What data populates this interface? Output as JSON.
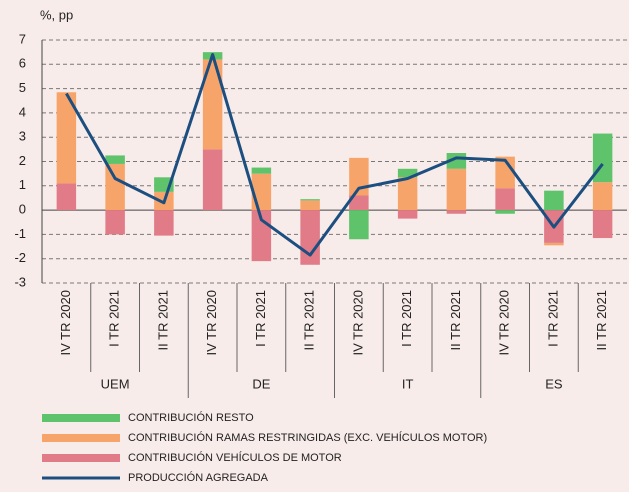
{
  "chart_data": {
    "type": "bar",
    "stacked": true,
    "y_label": "%, pp",
    "categories": [
      "IV TR 2020",
      "I TR 2021",
      "II TR 2021",
      "IV TR 2020",
      "I TR 2021",
      "II TR 2021",
      "IV TR 2020",
      "I TR 2021",
      "II TR 2021",
      "IV TR 2020",
      "I TR 2021",
      "II TR 2021"
    ],
    "groups": [
      "UEM",
      "DE",
      "IT",
      "ES"
    ],
    "series": [
      {
        "name": "CONTRIBUCIÓN RESTO",
        "color": "#5fc36b",
        "values": [
          0,
          0.35,
          0.6,
          0.3,
          0.25,
          0.05,
          -1.2,
          0.35,
          0.65,
          -0.15,
          0.8,
          2.0
        ]
      },
      {
        "name": "CONTRIBUCIÓN RAMAS RESTRINGIDAS (EXC. VEHÍCULOS MOTOR)",
        "color": "#f7a46b",
        "values": [
          3.75,
          1.9,
          0.75,
          3.7,
          1.5,
          0.4,
          1.55,
          1.35,
          1.7,
          1.3,
          -0.1,
          1.15
        ]
      },
      {
        "name": "CONTRIBUCIÓN VEHÍCULOS DE MOTOR",
        "color": "#e07b87",
        "values": [
          1.1,
          -1.0,
          -1.05,
          2.5,
          -2.1,
          -2.25,
          0.6,
          -0.35,
          -0.15,
          0.9,
          -1.35,
          -1.15
        ]
      },
      {
        "name": "PRODUCCIÓN AGREGADA",
        "color": "#1c4f80",
        "type": "line",
        "values": [
          4.8,
          1.3,
          0.3,
          6.4,
          -0.4,
          -1.85,
          0.9,
          1.3,
          2.15,
          2.05,
          -0.7,
          1.9
        ]
      }
    ],
    "ylim": [
      -3,
      7
    ],
    "yticks": [
      -3,
      -2,
      -1,
      0,
      1,
      2,
      3,
      4,
      5,
      6,
      7
    ],
    "grid": true
  }
}
